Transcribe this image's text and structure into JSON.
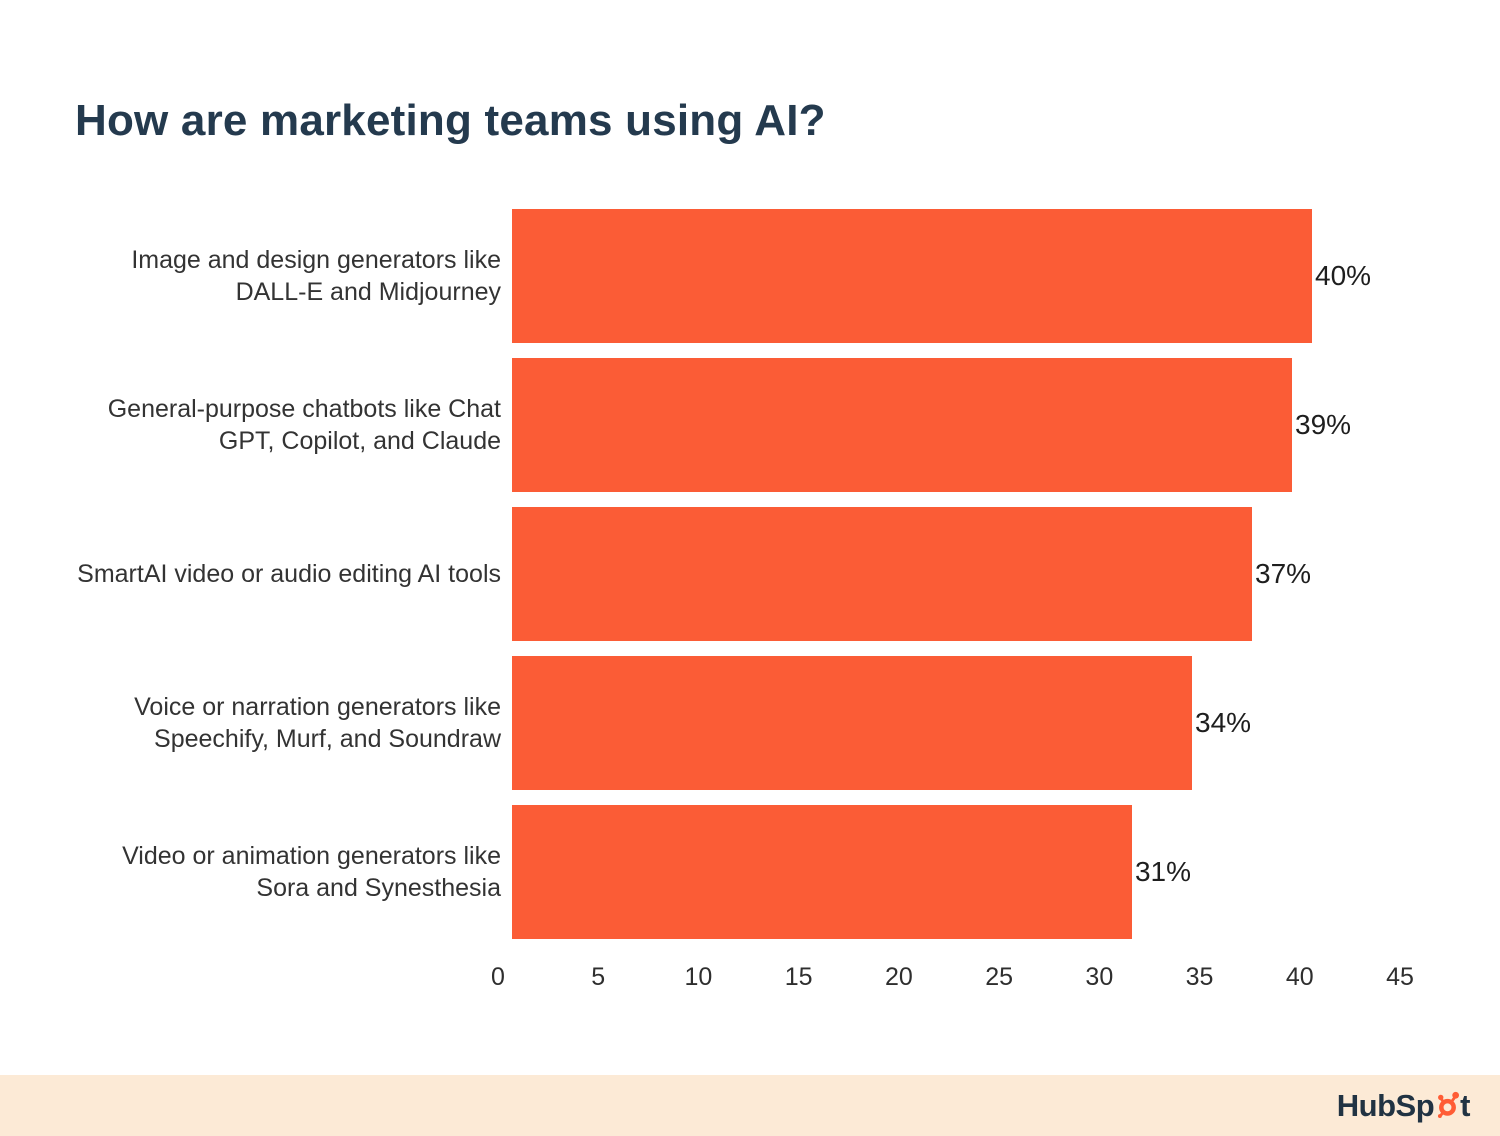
{
  "title": "How are marketing teams using AI?",
  "colors": {
    "bar": "#FB5C36",
    "title_text": "#243A4E",
    "label_text": "#333333",
    "value_text": "#1E1E1E",
    "footer_bg": "#FCEAD6",
    "logo_navy": "#213343",
    "logo_orange": "#FF5C35"
  },
  "chart_data": {
    "type": "bar",
    "orientation": "horizontal",
    "title": "How are marketing teams using AI?",
    "categories": [
      "Image and design generators like DALL-E and Midjourney",
      "General-purpose chatbots like Chat GPT, Copilot, and Claude",
      "SmartAI video or audio editing AI tools",
      "Voice or narration generators like Speechify, Murf, and Soundraw",
      "Video or animation generators like Sora and Synesthesia"
    ],
    "values": [
      40,
      39,
      37,
      34,
      31
    ],
    "value_labels": [
      "40%",
      "39%",
      "37%",
      "34%",
      "31%"
    ],
    "xlabel": "",
    "ylabel": "",
    "xlim": [
      0,
      45
    ],
    "x_ticks": [
      0,
      5,
      10,
      15,
      20,
      25,
      30,
      35,
      40,
      45
    ],
    "grid": false,
    "legend": false,
    "data_labels": "outside-end"
  },
  "footer": {
    "logo_name": "HubSpot",
    "wordmark_pre": "HubSp",
    "wordmark_post": "t",
    "sprocket_icon": "hubspot-sprocket"
  }
}
